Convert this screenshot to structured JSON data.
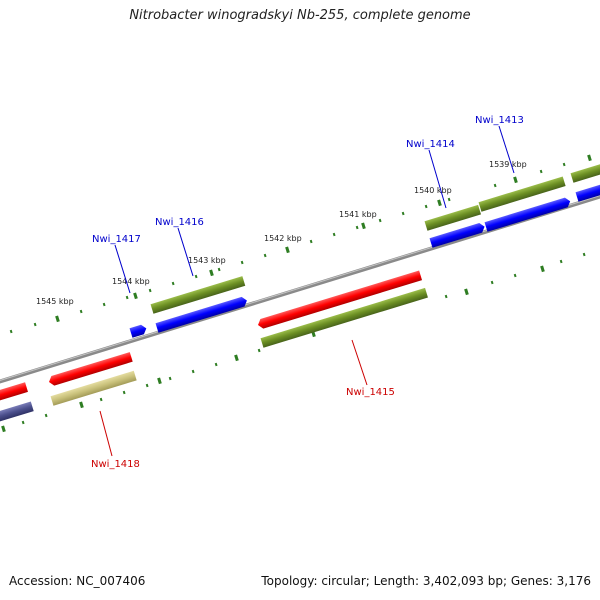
{
  "title": "Nitrobacter winogradskyi Nb-255, complete genome",
  "footer": {
    "accession": "Accession: NC_007406",
    "topology": "Topology: circular",
    "length": "Length: 3,402,093 bp",
    "genes": "Genes: 3,176"
  },
  "colors": {
    "backbone": "#8a8a8a",
    "tick": "#2e7d22",
    "gene_red": "#ff0000",
    "gene_blue": "#0000ff",
    "gene_green": "#6b8e23",
    "gene_khaki": "#c8c07a",
    "gene_navy": "#4b4f8c",
    "label_blue": "#0000cc",
    "label_red": "#cc0000"
  },
  "scale_labels": [
    "1539 kbp",
    "1540 kbp",
    "1541 kbp",
    "1542 kbp",
    "1543 kbp",
    "1544 kbp",
    "1545 kbp"
  ],
  "gene_labels": [
    "Nwi_1413",
    "Nwi_1414",
    "Nwi_1415",
    "Nwi_1416",
    "Nwi_1417",
    "Nwi_1418"
  ]
}
